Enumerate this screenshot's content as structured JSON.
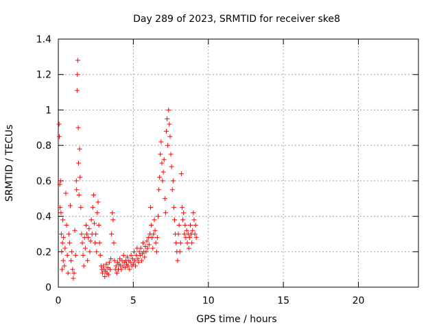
{
  "chart_data": {
    "type": "scatter",
    "title": "Day 289 of 2023, SRMTID for receiver ske8",
    "xlabel": "GPS time / hours",
    "ylabel": "SRMTID / TECUs",
    "xlim": [
      0,
      24
    ],
    "ylim": [
      0,
      1.4
    ],
    "xticks": [
      0,
      5,
      10,
      15,
      20
    ],
    "xtick_labels": [
      "0",
      "5",
      "10",
      "15",
      "20"
    ],
    "yticks": [
      0,
      0.2,
      0.4,
      0.6,
      0.8,
      1.0,
      1.2,
      1.4
    ],
    "ytick_labels": [
      "0",
      "0.2",
      "0.4",
      "0.6",
      "0.8",
      "1",
      "1.2",
      "1.4"
    ],
    "grid": true,
    "marker": "+",
    "color": "#ff0000",
    "series": [
      {
        "name": "SRMTID",
        "points": [
          [
            0.05,
            0.92
          ],
          [
            0.07,
            0.85
          ],
          [
            0.1,
            0.58
          ],
          [
            0.12,
            0.45
          ],
          [
            0.15,
            0.6
          ],
          [
            0.18,
            0.42
          ],
          [
            0.2,
            0.3
          ],
          [
            0.22,
            0.2
          ],
          [
            0.25,
            0.1
          ],
          [
            0.28,
            0.25
          ],
          [
            0.3,
            0.38
          ],
          [
            0.33,
            0.15
          ],
          [
            0.35,
            0.28
          ],
          [
            0.4,
            0.12
          ],
          [
            0.45,
            0.22
          ],
          [
            0.5,
            0.53
          ],
          [
            0.55,
            0.35
          ],
          [
            0.6,
            0.18
          ],
          [
            0.65,
            0.08
          ],
          [
            0.7,
            0.3
          ],
          [
            0.75,
            0.25
          ],
          [
            0.8,
            0.46
          ],
          [
            0.85,
            0.15
          ],
          [
            0.9,
            0.2
          ],
          [
            0.95,
            0.1
          ],
          [
            1.0,
            0.05
          ],
          [
            1.05,
            0.08
          ],
          [
            1.1,
            0.32
          ],
          [
            1.15,
            0.18
          ],
          [
            1.2,
            0.6
          ],
          [
            1.22,
            0.55
          ],
          [
            1.25,
            1.11
          ],
          [
            1.27,
            1.2
          ],
          [
            1.3,
            1.28
          ],
          [
            1.33,
            0.9
          ],
          [
            1.35,
            0.7
          ],
          [
            1.38,
            0.52
          ],
          [
            1.42,
            0.78
          ],
          [
            1.45,
            0.62
          ],
          [
            1.5,
            0.45
          ],
          [
            1.55,
            0.3
          ],
          [
            1.6,
            0.25
          ],
          [
            1.65,
            0.18
          ],
          [
            1.7,
            0.12
          ],
          [
            1.75,
            0.28
          ],
          [
            1.8,
            0.22
          ],
          [
            1.85,
            0.35
          ],
          [
            1.9,
            0.3
          ],
          [
            1.95,
            0.15
          ],
          [
            2.0,
            0.28
          ],
          [
            2.05,
            0.33
          ],
          [
            2.1,
            0.2
          ],
          [
            2.15,
            0.26
          ],
          [
            2.2,
            0.38
          ],
          [
            2.25,
            0.3
          ],
          [
            2.3,
            0.45
          ],
          [
            2.35,
            0.52
          ],
          [
            2.4,
            0.36
          ],
          [
            2.45,
            0.25
          ],
          [
            2.5,
            0.3
          ],
          [
            2.55,
            0.2
          ],
          [
            2.6,
            0.42
          ],
          [
            2.65,
            0.48
          ],
          [
            2.7,
            0.35
          ],
          [
            2.75,
            0.25
          ],
          [
            2.8,
            0.18
          ],
          [
            2.85,
            0.12
          ],
          [
            2.9,
            0.1
          ],
          [
            2.95,
            0.08
          ],
          [
            3.0,
            0.12
          ],
          [
            3.05,
            0.1
          ],
          [
            3.1,
            0.06
          ],
          [
            3.15,
            0.09
          ],
          [
            3.2,
            0.13
          ],
          [
            3.25,
            0.08
          ],
          [
            3.3,
            0.11
          ],
          [
            3.35,
            0.07
          ],
          [
            3.4,
            0.14
          ],
          [
            3.45,
            0.1
          ],
          [
            3.5,
            0.16
          ],
          [
            3.55,
            0.3
          ],
          [
            3.6,
            0.42
          ],
          [
            3.65,
            0.38
          ],
          [
            3.7,
            0.25
          ],
          [
            3.75,
            0.15
          ],
          [
            3.8,
            0.1
          ],
          [
            3.85,
            0.12
          ],
          [
            3.9,
            0.08
          ],
          [
            3.95,
            0.14
          ],
          [
            4.0,
            0.1
          ],
          [
            4.05,
            0.13
          ],
          [
            4.1,
            0.16
          ],
          [
            4.15,
            0.12
          ],
          [
            4.2,
            0.1
          ],
          [
            4.25,
            0.15
          ],
          [
            4.3,
            0.12
          ],
          [
            4.35,
            0.18
          ],
          [
            4.4,
            0.14
          ],
          [
            4.45,
            0.11
          ],
          [
            4.5,
            0.15
          ],
          [
            4.55,
            0.13
          ],
          [
            4.6,
            0.17
          ],
          [
            4.65,
            0.12
          ],
          [
            4.7,
            0.15
          ],
          [
            4.75,
            0.1
          ],
          [
            4.8,
            0.14
          ],
          [
            4.85,
            0.18
          ],
          [
            4.9,
            0.12
          ],
          [
            4.95,
            0.16
          ],
          [
            5.0,
            0.13
          ],
          [
            5.05,
            0.2
          ],
          [
            5.1,
            0.15
          ],
          [
            5.15,
            0.12
          ],
          [
            5.2,
            0.18
          ],
          [
            5.25,
            0.22
          ],
          [
            5.3,
            0.16
          ],
          [
            5.35,
            0.14
          ],
          [
            5.4,
            0.2
          ],
          [
            5.45,
            0.18
          ],
          [
            5.5,
            0.22
          ],
          [
            5.55,
            0.15
          ],
          [
            5.6,
            0.19
          ],
          [
            5.65,
            0.25
          ],
          [
            5.7,
            0.2
          ],
          [
            5.75,
            0.17
          ],
          [
            5.8,
            0.23
          ],
          [
            5.85,
            0.2
          ],
          [
            5.9,
            0.26
          ],
          [
            5.95,
            0.22
          ],
          [
            6.0,
            0.28
          ],
          [
            6.05,
            0.24
          ],
          [
            6.1,
            0.3
          ],
          [
            6.15,
            0.45
          ],
          [
            6.2,
            0.35
          ],
          [
            6.25,
            0.28
          ],
          [
            6.3,
            0.22
          ],
          [
            6.35,
            0.3
          ],
          [
            6.4,
            0.38
          ],
          [
            6.45,
            0.32
          ],
          [
            6.5,
            0.25
          ],
          [
            6.55,
            0.2
          ],
          [
            6.6,
            0.28
          ],
          [
            6.65,
            0.4
          ],
          [
            6.7,
            0.55
          ],
          [
            6.75,
            0.62
          ],
          [
            6.8,
            0.75
          ],
          [
            6.85,
            0.82
          ],
          [
            6.9,
            0.7
          ],
          [
            6.95,
            0.6
          ],
          [
            7.0,
            0.65
          ],
          [
            7.05,
            0.72
          ],
          [
            7.1,
            0.5
          ],
          [
            7.15,
            0.42
          ],
          [
            7.2,
            0.88
          ],
          [
            7.25,
            0.95
          ],
          [
            7.3,
            0.8
          ],
          [
            7.35,
            1.0
          ],
          [
            7.4,
            0.92
          ],
          [
            7.45,
            0.85
          ],
          [
            7.5,
            0.75
          ],
          [
            7.55,
            0.68
          ],
          [
            7.6,
            0.55
          ],
          [
            7.65,
            0.6
          ],
          [
            7.7,
            0.45
          ],
          [
            7.75,
            0.38
          ],
          [
            7.8,
            0.3
          ],
          [
            7.85,
            0.25
          ],
          [
            7.9,
            0.2
          ],
          [
            7.95,
            0.15
          ],
          [
            8.0,
            0.3
          ],
          [
            8.05,
            0.35
          ],
          [
            8.1,
            0.2
          ],
          [
            8.15,
            0.25
          ],
          [
            8.2,
            0.64
          ],
          [
            8.25,
            0.45
          ],
          [
            8.3,
            0.38
          ],
          [
            8.35,
            0.42
          ],
          [
            8.4,
            0.3
          ],
          [
            8.45,
            0.35
          ],
          [
            8.5,
            0.28
          ],
          [
            8.55,
            0.32
          ],
          [
            8.6,
            0.25
          ],
          [
            8.65,
            0.3
          ],
          [
            8.7,
            0.22
          ],
          [
            8.75,
            0.28
          ],
          [
            8.8,
            0.35
          ],
          [
            8.85,
            0.3
          ],
          [
            8.9,
            0.25
          ],
          [
            8.95,
            0.32
          ],
          [
            9.0,
            0.42
          ],
          [
            9.05,
            0.38
          ],
          [
            9.1,
            0.3
          ],
          [
            9.15,
            0.35
          ],
          [
            9.2,
            0.28
          ]
        ]
      }
    ]
  }
}
